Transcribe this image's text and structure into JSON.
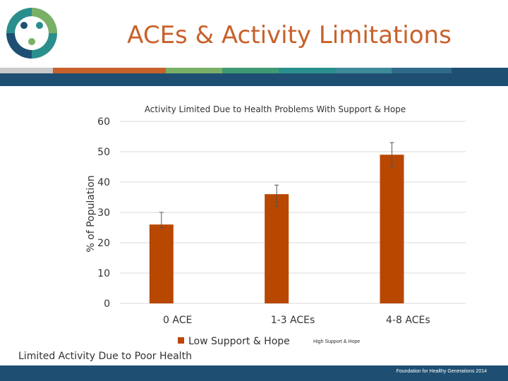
{
  "slide": {
    "title": "ACEs & Activity Limitations",
    "caption": "Limited Activity Due to Poor Health",
    "footer": "Foundation for Healthy Generations 2014"
  },
  "colors": {
    "title": "#c8612b",
    "bar": "#b84700",
    "navy": "#1e4f72",
    "stripe": [
      "#c9c9c9",
      "#c8612b",
      "#c8612b",
      "#7ab065",
      "#3f9a73",
      "#2a8f8c",
      "#3d8a9a",
      "#2f6a88",
      "#1e4f72"
    ]
  },
  "chart_data": {
    "type": "bar",
    "title": "Activity Limited Due to Health Problems With Support & Hope",
    "ylabel": "% of Population",
    "xlabel": "",
    "ylim": [
      0,
      60
    ],
    "yticks": [
      0,
      10,
      20,
      30,
      40,
      50,
      60
    ],
    "categories": [
      "0 ACE",
      "1-3 ACEs",
      "4-8 ACEs"
    ],
    "series": [
      {
        "name": "Low Support & Hope",
        "values": [
          26,
          36,
          49
        ],
        "error_low": [
          25,
          32,
          45
        ],
        "error_high": [
          30,
          39,
          53
        ]
      },
      {
        "name": "High Support & Hope",
        "values": [
          null,
          null,
          null
        ]
      }
    ],
    "legend": "bottom",
    "grid": true
  }
}
